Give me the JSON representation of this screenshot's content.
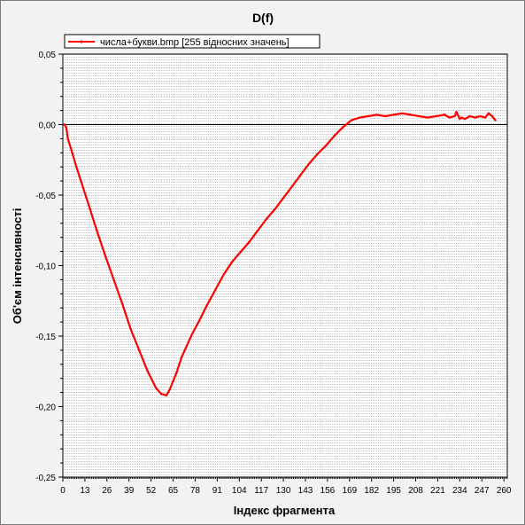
{
  "chart_data": {
    "type": "line",
    "title": "D(f)",
    "xlabel": "Індекс фрагмента",
    "ylabel": "Об'єм інтенсивності",
    "xlim": [
      0,
      262
    ],
    "ylim": [
      -0.25,
      0.05
    ],
    "x_ticks": [
      "0",
      "13",
      "26",
      "39",
      "52",
      "65",
      "78",
      "91",
      "104",
      "117",
      "130",
      "143",
      "156",
      "169",
      "182",
      "195",
      "208",
      "221",
      "234",
      "247",
      "260"
    ],
    "x_tick_values": [
      0,
      13,
      26,
      39,
      52,
      65,
      78,
      91,
      104,
      117,
      130,
      143,
      156,
      169,
      182,
      195,
      208,
      221,
      234,
      247,
      260
    ],
    "y_ticks": [
      "0,05",
      "0,00",
      "-0,05",
      "-0,10",
      "-0,15",
      "-0,20",
      "-0,25"
    ],
    "y_tick_values": [
      0.05,
      0.0,
      -0.05,
      -0.1,
      -0.15,
      -0.2,
      -0.25
    ],
    "grid": true,
    "legend_position": "top-left",
    "series": [
      {
        "name": "числа+букви.bmp [255 відносних значень]",
        "color": "#ff0000",
        "x": [
          1,
          2,
          3,
          5,
          8,
          12,
          16,
          20,
          25,
          30,
          35,
          40,
          45,
          50,
          55,
          58,
          61,
          63,
          65,
          67,
          70,
          73,
          76,
          80,
          85,
          90,
          95,
          100,
          105,
          110,
          115,
          120,
          125,
          130,
          135,
          140,
          145,
          150,
          155,
          160,
          165,
          170,
          175,
          180,
          185,
          190,
          195,
          200,
          205,
          210,
          215,
          220,
          225,
          228,
          231,
          232,
          234,
          235,
          237,
          240,
          243,
          246,
          249,
          251,
          253,
          255
        ],
        "y": [
          0.0,
          -0.002,
          -0.01,
          -0.018,
          -0.03,
          -0.045,
          -0.06,
          -0.075,
          -0.093,
          -0.11,
          -0.127,
          -0.145,
          -0.16,
          -0.175,
          -0.187,
          -0.191,
          -0.192,
          -0.188,
          -0.182,
          -0.176,
          -0.165,
          -0.157,
          -0.149,
          -0.14,
          -0.128,
          -0.117,
          -0.106,
          -0.097,
          -0.09,
          -0.083,
          -0.075,
          -0.067,
          -0.06,
          -0.052,
          -0.044,
          -0.036,
          -0.028,
          -0.021,
          -0.015,
          -0.008,
          -0.002,
          0.003,
          0.005,
          0.006,
          0.007,
          0.006,
          0.007,
          0.008,
          0.007,
          0.006,
          0.005,
          0.006,
          0.007,
          0.005,
          0.006,
          0.009,
          0.004,
          0.005,
          0.004,
          0.006,
          0.005,
          0.006,
          0.005,
          0.008,
          0.006,
          0.003
        ]
      }
    ]
  }
}
